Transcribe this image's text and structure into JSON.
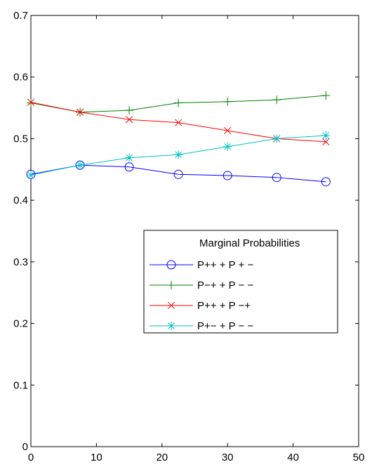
{
  "chart_data": {
    "type": "line",
    "title": "",
    "xlabel": "",
    "ylabel": "",
    "xlim": [
      0,
      50
    ],
    "ylim": [
      0,
      0.7
    ],
    "xticks": [
      0,
      10,
      20,
      30,
      40,
      50
    ],
    "yticks": [
      0,
      0.1,
      0.2,
      0.3,
      0.4,
      0.5,
      0.6,
      0.7
    ],
    "grid": false,
    "legend": {
      "title": "Marginal Probabilities",
      "placement": "right-center"
    },
    "x": [
      0,
      7.5,
      15,
      22.5,
      30,
      37.5,
      45
    ],
    "series": [
      {
        "name": "P++ + P + −",
        "color": "#0000ff",
        "marker": "circle",
        "values": [
          0.442,
          0.457,
          0.454,
          0.442,
          0.44,
          0.437,
          0.43
        ]
      },
      {
        "name": "P−+ + P − −",
        "color": "#008000",
        "marker": "plus",
        "values": [
          0.558,
          0.543,
          0.546,
          0.558,
          0.56,
          0.563,
          0.57
        ]
      },
      {
        "name": "P++ + P −+",
        "color": "#ff0000",
        "marker": "x",
        "values": [
          0.559,
          0.543,
          0.531,
          0.526,
          0.513,
          0.5,
          0.495
        ]
      },
      {
        "name": "P+− + P − −",
        "color": "#00bfbf",
        "marker": "star",
        "values": [
          0.441,
          0.457,
          0.469,
          0.474,
          0.487,
          0.5,
          0.505
        ]
      }
    ]
  }
}
